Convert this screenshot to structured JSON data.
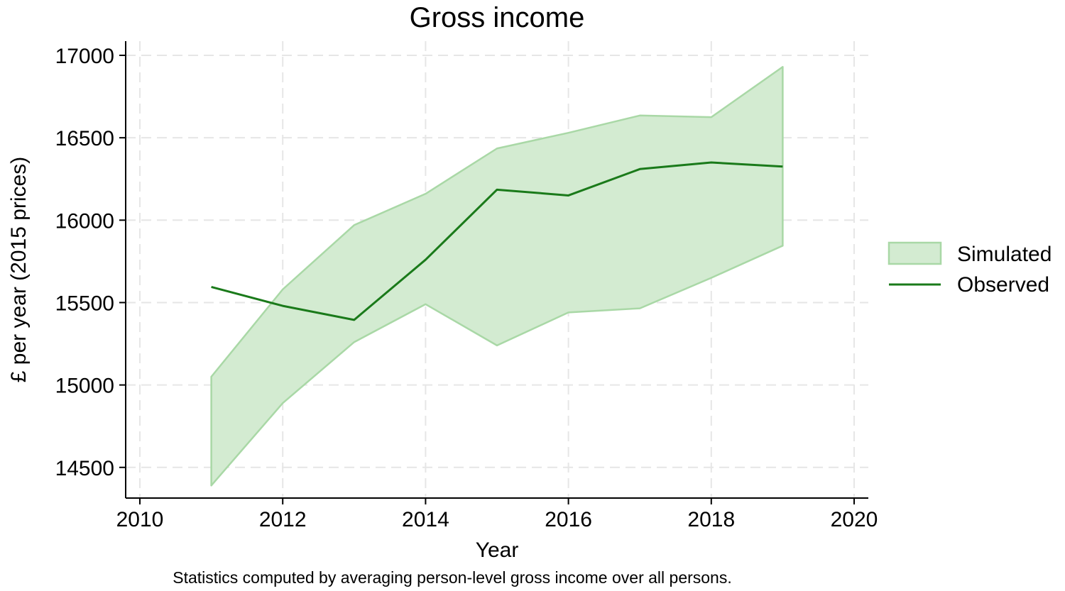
{
  "chart_data": {
    "type": "area",
    "title": "Gross income",
    "xlabel": "Year",
    "ylabel": "£ per year (2015 prices)",
    "note": "Statistics computed by averaging person-level gross income over all persons.",
    "xlim": [
      2010,
      2020
    ],
    "ylim": [
      14400,
      17000
    ],
    "x_ticks": [
      2010,
      2012,
      2014,
      2016,
      2018,
      2020
    ],
    "y_ticks": [
      14500,
      15000,
      15500,
      16000,
      16500,
      17000
    ],
    "grid": true,
    "legend_position": "right",
    "x": [
      2011,
      2012,
      2013,
      2014,
      2015,
      2016,
      2017,
      2018,
      2019
    ],
    "series": [
      {
        "name": "Simulated",
        "kind": "band",
        "lower": [
          14390,
          14890,
          15260,
          15490,
          15240,
          15440,
          15465,
          15650,
          15845
        ],
        "upper": [
          15050,
          15580,
          15970,
          16160,
          16435,
          16530,
          16635,
          16625,
          16930
        ],
        "color": "#d3ebd1",
        "edge_color": "#a9d8a6"
      },
      {
        "name": "Observed",
        "kind": "line",
        "values": [
          15595,
          15480,
          15395,
          15760,
          16185,
          16150,
          16310,
          16350,
          16325
        ],
        "color": "#1a7a1a"
      }
    ]
  }
}
